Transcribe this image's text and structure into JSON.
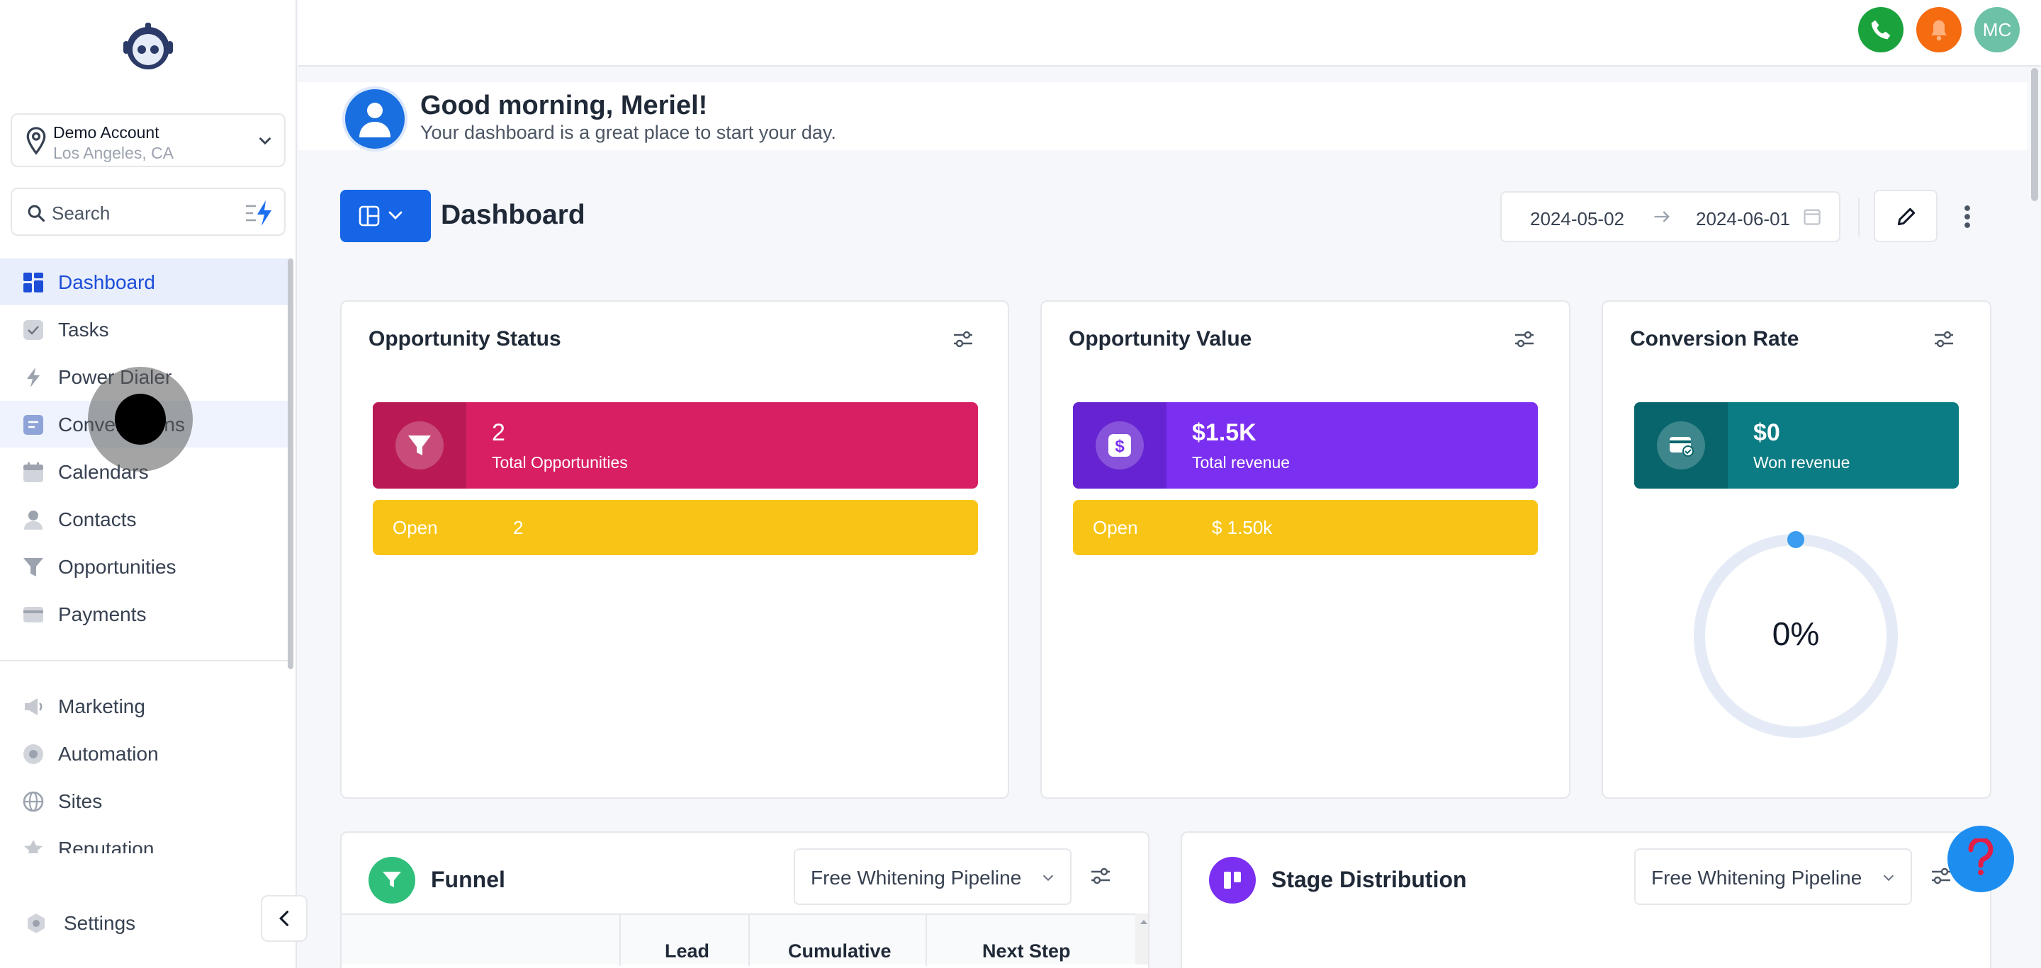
{
  "account": {
    "name": "Demo Account",
    "location": "Los Angeles, CA"
  },
  "search": {
    "placeholder": "Search"
  },
  "nav": {
    "items": [
      {
        "label": "Dashboard",
        "icon": "dashboard-icon"
      },
      {
        "label": "Tasks",
        "icon": "tasks-icon"
      },
      {
        "label": "Power Dialer",
        "icon": "power-dialer-icon"
      },
      {
        "label": "Conversations",
        "icon": "conversations-icon"
      },
      {
        "label": "Calendars",
        "icon": "calendar-icon"
      },
      {
        "label": "Contacts",
        "icon": "contacts-icon"
      },
      {
        "label": "Opportunities",
        "icon": "opportunities-icon"
      },
      {
        "label": "Payments",
        "icon": "payments-icon"
      }
    ],
    "secondary": [
      {
        "label": "Marketing",
        "icon": "marketing-icon"
      },
      {
        "label": "Automation",
        "icon": "automation-icon"
      },
      {
        "label": "Sites",
        "icon": "sites-icon"
      },
      {
        "label": "Reputation",
        "icon": "reputation-icon"
      }
    ],
    "settings": "Settings"
  },
  "header": {
    "avatar_initials": "MC"
  },
  "greeting": {
    "title": "Good morning, Meriel!",
    "subtitle": "Your dashboard is a great place to start your day."
  },
  "dashboard": {
    "title": "Dashboard",
    "date_from": "2024-05-02",
    "date_to": "2024-06-01"
  },
  "cards": {
    "opportunity_status": {
      "title": "Opportunity Status",
      "value": "2",
      "caption": "Total Opportunities",
      "open_label": "Open",
      "open_value": "2"
    },
    "opportunity_value": {
      "title": "Opportunity Value",
      "value": "$1.5K",
      "caption": "Total revenue",
      "open_label": "Open",
      "open_value": "$ 1.50k"
    },
    "conversion_rate": {
      "title": "Conversion Rate",
      "value": "$0",
      "caption": "Won revenue",
      "percent": "0%",
      "percent_value": 0
    }
  },
  "funnel": {
    "title": "Funnel",
    "pipeline": "Free Whitening Pipeline",
    "columns": [
      "Lead",
      "Cumulative",
      "Next Step"
    ]
  },
  "stage_distribution": {
    "title": "Stage Distribution",
    "pipeline": "Free Whitening Pipeline"
  },
  "colors": {
    "primary": "#1565e6",
    "status_pink": "#d81f63",
    "value_purple": "#7b2ff0",
    "conversion_teal": "#0b7c83",
    "open_yellow": "#f8c516"
  }
}
